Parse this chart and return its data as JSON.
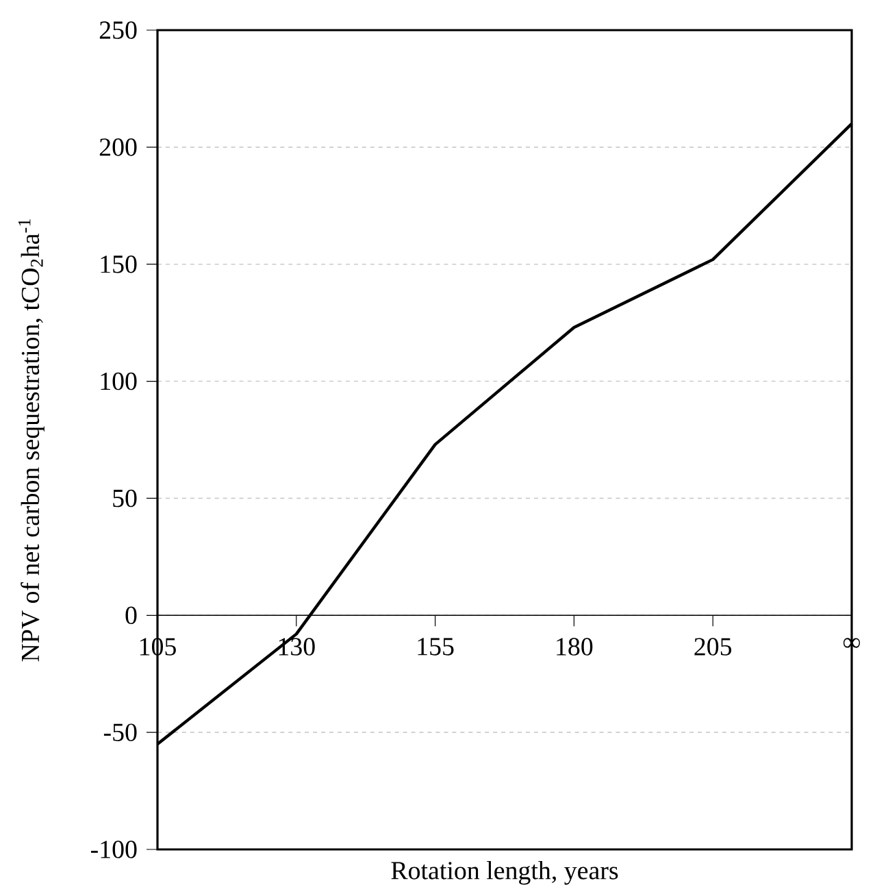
{
  "chart_data": {
    "type": "line",
    "xlabel": "Rotation length, years",
    "ylabel": "NPV of net carbon sequestration, tCO$_{2}$ha$^{-1}$",
    "categories": [
      "105",
      "130",
      "155",
      "180",
      "205",
      "∞"
    ],
    "series": [
      {
        "color": "#000000",
        "values": [
          -55,
          -8,
          73,
          123,
          152,
          210
        ]
      }
    ],
    "ylim": [
      -100,
      250
    ],
    "yticks": [
      -100,
      -50,
      0,
      50,
      100,
      150,
      200,
      250
    ],
    "grid": "y",
    "marker": "none",
    "line_style": "solid"
  }
}
